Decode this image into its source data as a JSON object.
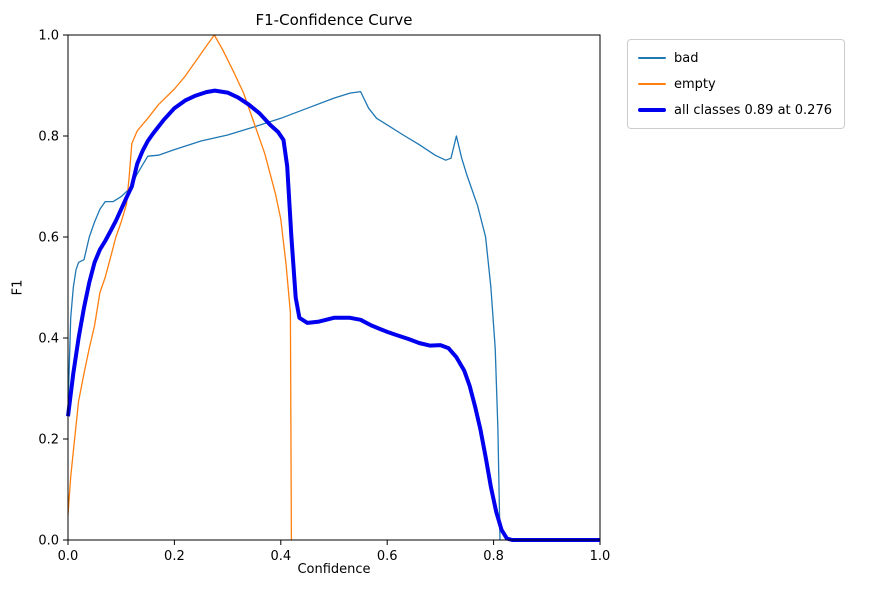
{
  "chart_data": {
    "type": "line",
    "title": "F1-Confidence Curve",
    "xlabel": "Confidence",
    "ylabel": "F1",
    "xlim": [
      0,
      1
    ],
    "ylim": [
      0,
      1
    ],
    "xtick_labels": [
      "0.0",
      "0.2",
      "0.4",
      "0.6",
      "0.8",
      "1.0"
    ],
    "ytick_labels": [
      "0.0",
      "0.2",
      "0.4",
      "0.6",
      "0.8",
      "1.0"
    ],
    "grid": false,
    "legend_position": "outside-upper-right",
    "best_f1": 0.89,
    "best_confidence": 0.276,
    "series": [
      {
        "id": "bad",
        "name": "bad",
        "color": "#1f77b4",
        "width": 1.3,
        "points": [
          [
            0.0,
            0.26
          ],
          [
            0.005,
            0.44
          ],
          [
            0.01,
            0.5
          ],
          [
            0.015,
            0.535
          ],
          [
            0.02,
            0.55
          ],
          [
            0.03,
            0.555
          ],
          [
            0.04,
            0.6
          ],
          [
            0.05,
            0.63
          ],
          [
            0.06,
            0.655
          ],
          [
            0.07,
            0.67
          ],
          [
            0.085,
            0.67
          ],
          [
            0.1,
            0.68
          ],
          [
            0.115,
            0.695
          ],
          [
            0.13,
            0.725
          ],
          [
            0.15,
            0.76
          ],
          [
            0.17,
            0.762
          ],
          [
            0.2,
            0.773
          ],
          [
            0.25,
            0.79
          ],
          [
            0.3,
            0.802
          ],
          [
            0.35,
            0.818
          ],
          [
            0.4,
            0.835
          ],
          [
            0.45,
            0.855
          ],
          [
            0.5,
            0.875
          ],
          [
            0.53,
            0.885
          ],
          [
            0.55,
            0.888
          ],
          [
            0.565,
            0.855
          ],
          [
            0.58,
            0.835
          ],
          [
            0.6,
            0.822
          ],
          [
            0.63,
            0.802
          ],
          [
            0.66,
            0.783
          ],
          [
            0.69,
            0.762
          ],
          [
            0.71,
            0.752
          ],
          [
            0.72,
            0.756
          ],
          [
            0.73,
            0.8
          ],
          [
            0.74,
            0.756
          ],
          [
            0.75,
            0.722
          ],
          [
            0.77,
            0.662
          ],
          [
            0.785,
            0.6
          ],
          [
            0.795,
            0.5
          ],
          [
            0.803,
            0.38
          ],
          [
            0.808,
            0.22
          ],
          [
            0.812,
            0.0
          ]
        ]
      },
      {
        "id": "empty",
        "name": "empty",
        "color": "#ff7f0e",
        "width": 1.3,
        "points": [
          [
            0.0,
            0.05
          ],
          [
            0.005,
            0.125
          ],
          [
            0.01,
            0.175
          ],
          [
            0.02,
            0.275
          ],
          [
            0.03,
            0.33
          ],
          [
            0.04,
            0.38
          ],
          [
            0.05,
            0.425
          ],
          [
            0.06,
            0.49
          ],
          [
            0.07,
            0.52
          ],
          [
            0.08,
            0.56
          ],
          [
            0.09,
            0.6
          ],
          [
            0.1,
            0.63
          ],
          [
            0.11,
            0.665
          ],
          [
            0.115,
            0.72
          ],
          [
            0.12,
            0.785
          ],
          [
            0.13,
            0.81
          ],
          [
            0.15,
            0.835
          ],
          [
            0.17,
            0.862
          ],
          [
            0.2,
            0.893
          ],
          [
            0.22,
            0.918
          ],
          [
            0.24,
            0.948
          ],
          [
            0.26,
            0.978
          ],
          [
            0.275,
            1.0
          ],
          [
            0.29,
            0.972
          ],
          [
            0.31,
            0.93
          ],
          [
            0.33,
            0.885
          ],
          [
            0.35,
            0.825
          ],
          [
            0.37,
            0.765
          ],
          [
            0.39,
            0.685
          ],
          [
            0.4,
            0.635
          ],
          [
            0.41,
            0.545
          ],
          [
            0.418,
            0.45
          ],
          [
            0.42,
            0.0
          ]
        ]
      },
      {
        "id": "all-classes",
        "name": "all classes 0.89 at 0.276",
        "color": "#0000ee",
        "width": 4,
        "points": [
          [
            0.0,
            0.245
          ],
          [
            0.01,
            0.33
          ],
          [
            0.02,
            0.4
          ],
          [
            0.03,
            0.46
          ],
          [
            0.04,
            0.51
          ],
          [
            0.05,
            0.55
          ],
          [
            0.06,
            0.575
          ],
          [
            0.07,
            0.592
          ],
          [
            0.08,
            0.612
          ],
          [
            0.09,
            0.632
          ],
          [
            0.1,
            0.655
          ],
          [
            0.11,
            0.678
          ],
          [
            0.12,
            0.7
          ],
          [
            0.13,
            0.745
          ],
          [
            0.14,
            0.77
          ],
          [
            0.15,
            0.79
          ],
          [
            0.16,
            0.805
          ],
          [
            0.18,
            0.832
          ],
          [
            0.2,
            0.855
          ],
          [
            0.22,
            0.87
          ],
          [
            0.24,
            0.88
          ],
          [
            0.26,
            0.887
          ],
          [
            0.276,
            0.89
          ],
          [
            0.3,
            0.886
          ],
          [
            0.32,
            0.876
          ],
          [
            0.34,
            0.862
          ],
          [
            0.36,
            0.845
          ],
          [
            0.38,
            0.822
          ],
          [
            0.395,
            0.808
          ],
          [
            0.405,
            0.792
          ],
          [
            0.412,
            0.74
          ],
          [
            0.42,
            0.6
          ],
          [
            0.428,
            0.48
          ],
          [
            0.435,
            0.44
          ],
          [
            0.45,
            0.43
          ],
          [
            0.47,
            0.432
          ],
          [
            0.5,
            0.44
          ],
          [
            0.53,
            0.44
          ],
          [
            0.55,
            0.436
          ],
          [
            0.57,
            0.425
          ],
          [
            0.6,
            0.412
          ],
          [
            0.62,
            0.405
          ],
          [
            0.64,
            0.398
          ],
          [
            0.66,
            0.39
          ],
          [
            0.68,
            0.385
          ],
          [
            0.7,
            0.386
          ],
          [
            0.715,
            0.38
          ],
          [
            0.73,
            0.362
          ],
          [
            0.745,
            0.335
          ],
          [
            0.755,
            0.305
          ],
          [
            0.765,
            0.265
          ],
          [
            0.775,
            0.22
          ],
          [
            0.785,
            0.165
          ],
          [
            0.795,
            0.105
          ],
          [
            0.805,
            0.055
          ],
          [
            0.815,
            0.02
          ],
          [
            0.825,
            0.003
          ],
          [
            0.835,
            0.0
          ],
          [
            0.86,
            0.0
          ],
          [
            0.9,
            0.0
          ],
          [
            0.95,
            0.0
          ],
          [
            1.0,
            0.0
          ]
        ]
      }
    ]
  }
}
